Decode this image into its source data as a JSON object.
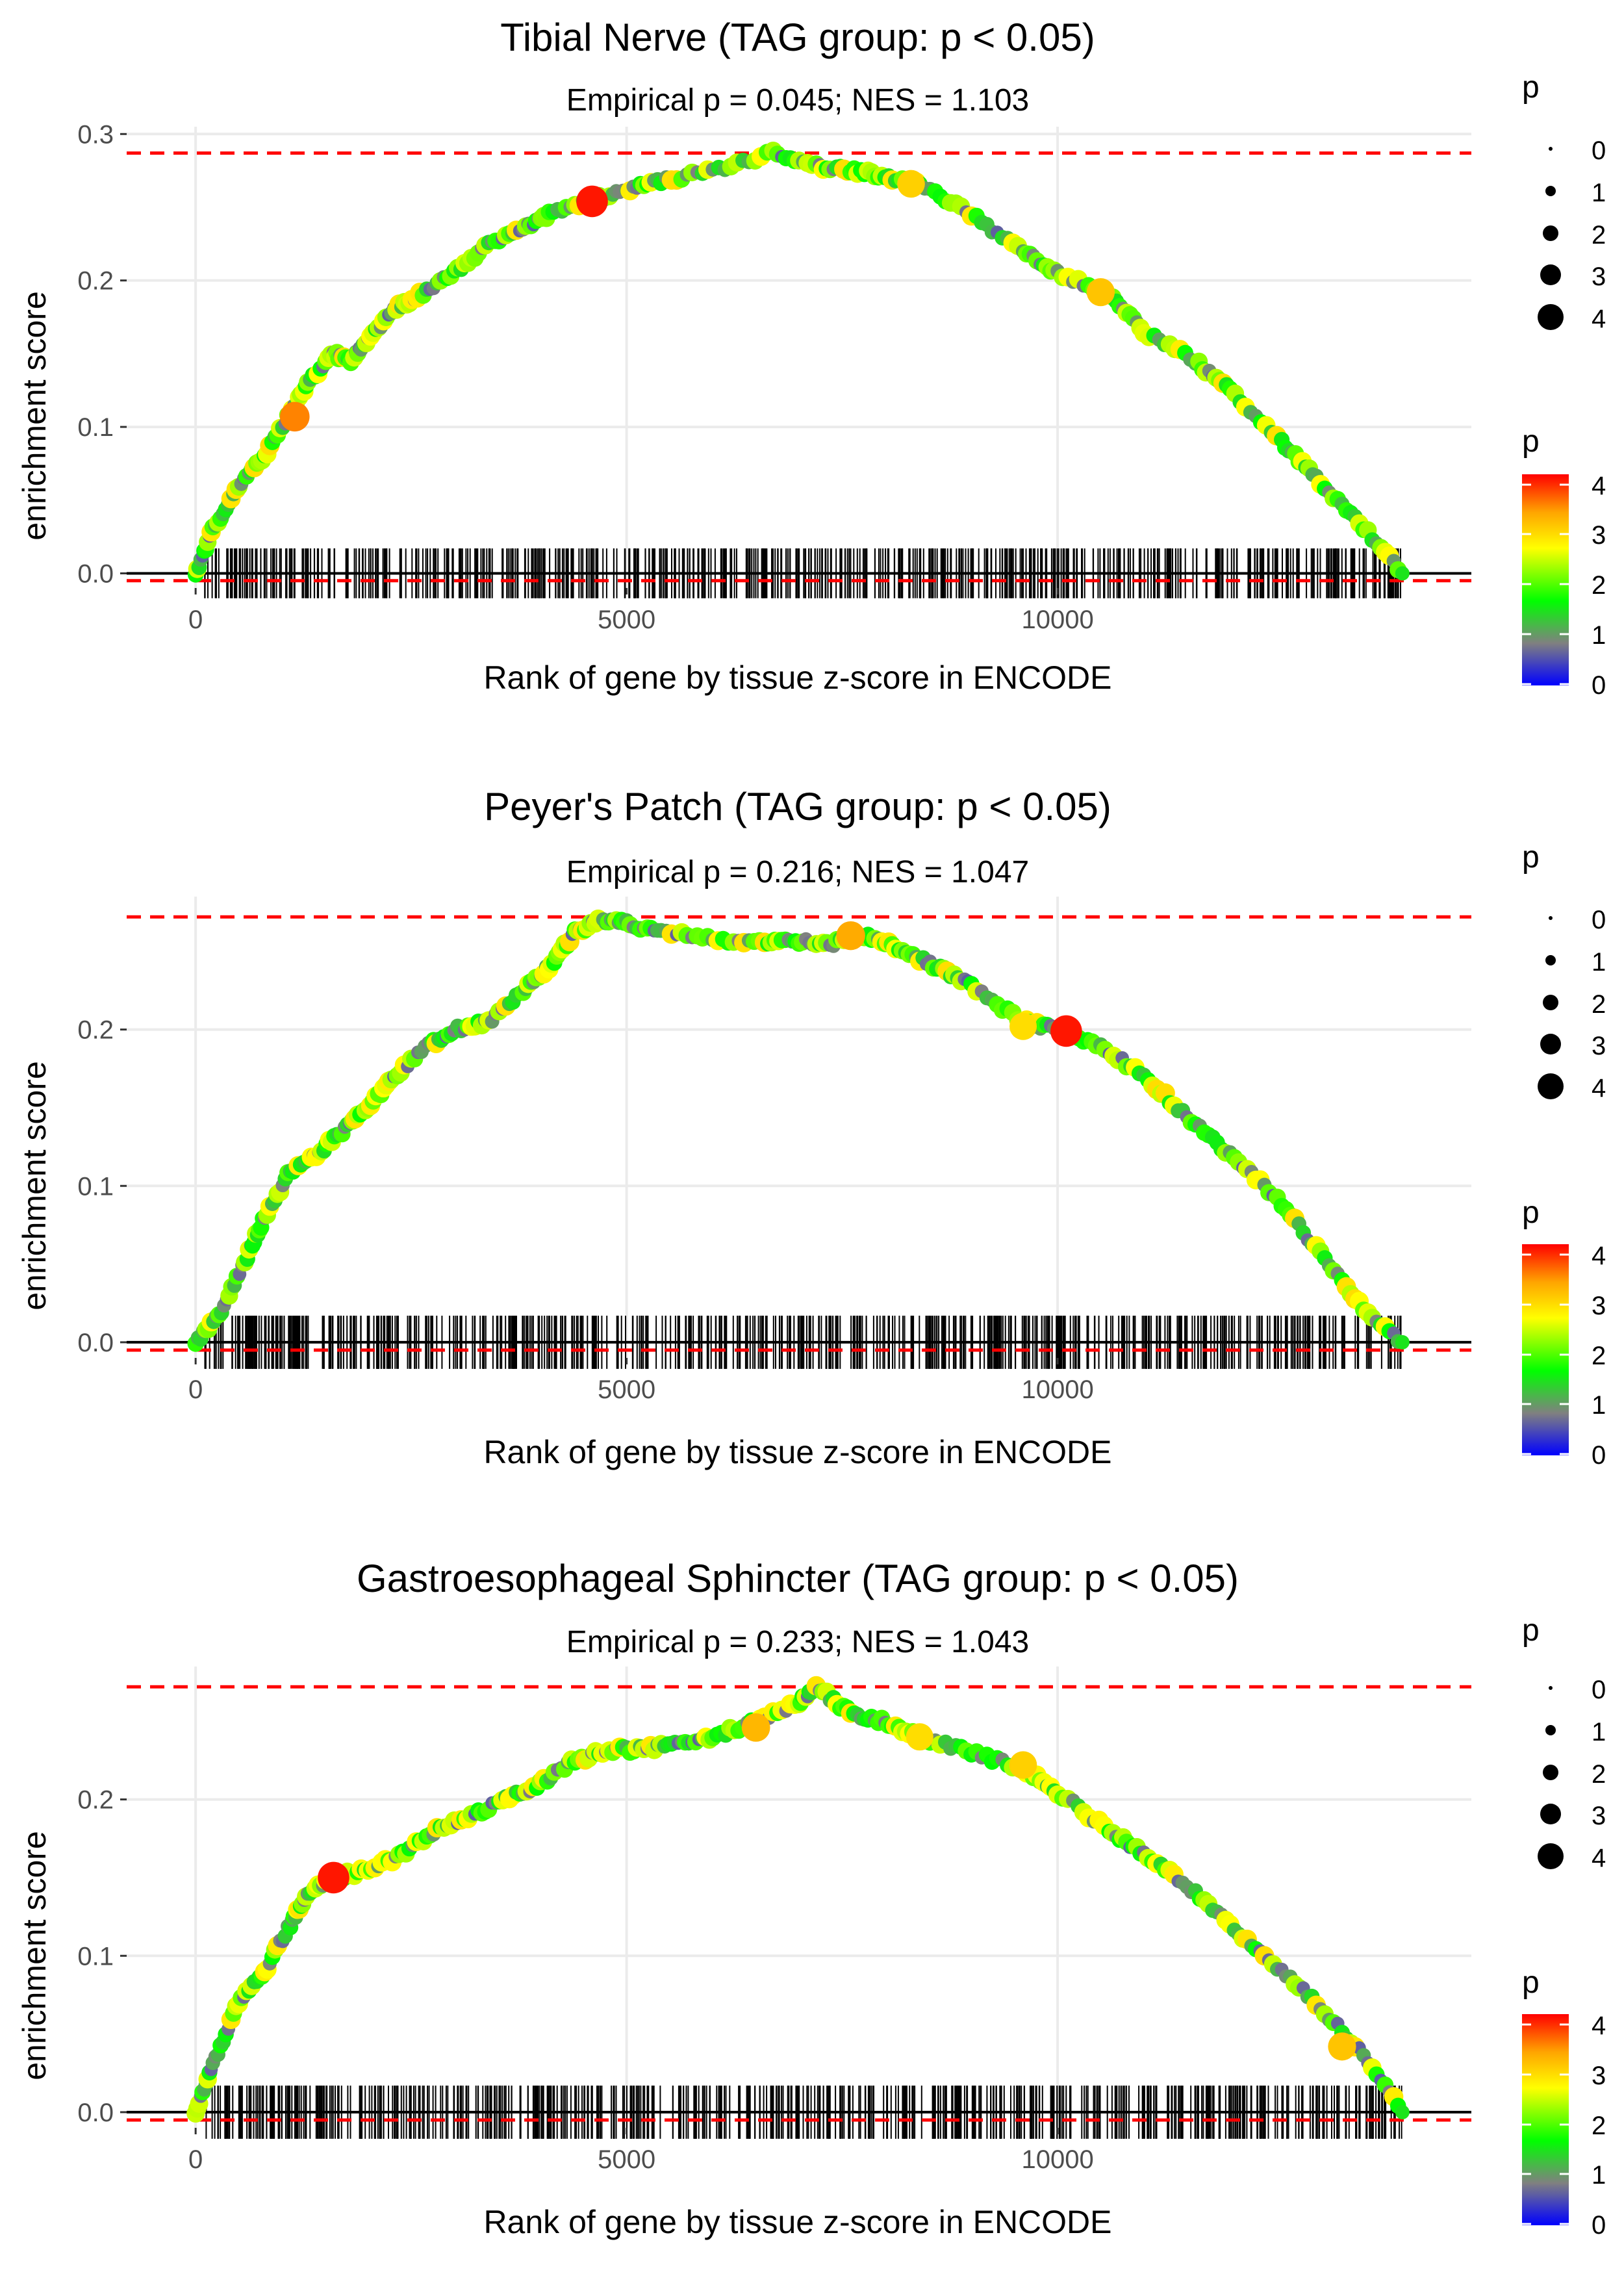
{
  "chart_data": [
    {
      "type": "line",
      "title": "Tibial Nerve (TAG group: p < 0.05)",
      "subtitle": "Empirical p = 0.045; NES = 1.103",
      "xlabel": "Rank of gene by tissue z-score in ENCODE",
      "ylabel": "enrichment score",
      "xlim": [
        -800,
        14800
      ],
      "ylim": [
        -0.01,
        0.305
      ],
      "x_ticks": [
        0,
        5000,
        10000
      ],
      "x_tick_labels": [
        "0",
        "5000",
        "10000"
      ],
      "y_ticks": [
        0.0,
        0.1,
        0.2,
        0.3
      ],
      "y_tick_labels": [
        "0.0",
        "0.1",
        "0.2",
        "0.3"
      ],
      "max_es": 0.287,
      "min_es": -0.005,
      "rug_seed": 11,
      "x": [
        0,
        200,
        500,
        800,
        1100,
        1300,
        1600,
        1800,
        2000,
        2300,
        2600,
        3000,
        3400,
        3800,
        4100,
        4600,
        5000,
        5400,
        6000,
        6700,
        7200,
        7600,
        8000,
        8400,
        9000,
        9600,
        10000,
        10600,
        11000,
        11600,
        12000,
        12600,
        13000,
        13500,
        14000
      ],
      "y": [
        0.0,
        0.03,
        0.06,
        0.08,
        0.11,
        0.13,
        0.15,
        0.145,
        0.16,
        0.18,
        0.19,
        0.205,
        0.225,
        0.235,
        0.245,
        0.255,
        0.262,
        0.268,
        0.275,
        0.287,
        0.278,
        0.276,
        0.27,
        0.265,
        0.245,
        0.22,
        0.205,
        0.19,
        0.165,
        0.145,
        0.125,
        0.09,
        0.065,
        0.035,
        0.0
      ],
      "highlight_points": [
        {
          "x": 1150,
          "y": 0.107,
          "p": 3.6
        },
        {
          "x": 4600,
          "y": 0.254,
          "p": 4.1
        },
        {
          "x": 8300,
          "y": 0.266,
          "p": 3.1
        },
        {
          "x": 10500,
          "y": 0.192,
          "p": 3.2
        }
      ]
    },
    {
      "type": "line",
      "title": "Peyer's Patch (TAG group: p < 0.05)",
      "subtitle": "Empirical p = 0.216; NES = 1.047",
      "xlabel": "Rank of gene by tissue z-score in ENCODE",
      "ylabel": "enrichment score",
      "xlim": [
        -800,
        14800
      ],
      "ylim": [
        -0.01,
        0.285
      ],
      "x_ticks": [
        0,
        5000,
        10000
      ],
      "x_tick_labels": [
        "0",
        "5000",
        "10000"
      ],
      "y_ticks": [
        0.0,
        0.1,
        0.2
      ],
      "y_tick_labels": [
        "0.0",
        "0.1",
        "0.2"
      ],
      "max_es": 0.272,
      "min_es": -0.005,
      "rug_seed": 23,
      "x": [
        0,
        300,
        600,
        800,
        1100,
        1400,
        1700,
        2000,
        2300,
        2700,
        3000,
        3400,
        3800,
        4100,
        4400,
        4700,
        5000,
        5400,
        6000,
        6600,
        7000,
        7400,
        7800,
        8200,
        8600,
        9000,
        9600,
        10000,
        10500,
        11000,
        11500,
        12000,
        12500,
        13000,
        13500,
        14000
      ],
      "y": [
        0.0,
        0.02,
        0.055,
        0.08,
        0.11,
        0.12,
        0.135,
        0.15,
        0.17,
        0.19,
        0.2,
        0.205,
        0.225,
        0.24,
        0.262,
        0.27,
        0.268,
        0.262,
        0.258,
        0.255,
        0.256,
        0.255,
        0.26,
        0.25,
        0.24,
        0.228,
        0.205,
        0.2,
        0.19,
        0.17,
        0.145,
        0.12,
        0.095,
        0.06,
        0.025,
        0.0
      ],
      "highlight_points": [
        {
          "x": 7600,
          "y": 0.26,
          "p": 3.4
        },
        {
          "x": 10100,
          "y": 0.199,
          "p": 4.1
        },
        {
          "x": 9600,
          "y": 0.202,
          "p": 3.0
        }
      ]
    },
    {
      "type": "line",
      "title": "Gastroesophageal Sphincter (TAG group: p < 0.05)",
      "subtitle": "Empirical p = 0.233; NES = 1.043",
      "xlabel": "Rank of gene by tissue z-score in ENCODE",
      "ylabel": "enrichment score",
      "xlim": [
        -800,
        14800
      ],
      "ylim": [
        -0.01,
        0.285
      ],
      "x_ticks": [
        0,
        5000,
        10000
      ],
      "x_tick_labels": [
        "0",
        "5000",
        "10000"
      ],
      "y_ticks": [
        0.0,
        0.1,
        0.2
      ],
      "y_tick_labels": [
        "0.0",
        "0.1",
        "0.2"
      ],
      "max_es": 0.272,
      "min_es": -0.005,
      "rug_seed": 37,
      "x": [
        0,
        200,
        500,
        800,
        1100,
        1300,
        1600,
        2000,
        2400,
        2800,
        3200,
        3600,
        4000,
        4400,
        4800,
        5200,
        5600,
        6000,
        6500,
        7000,
        7200,
        7600,
        8000,
        8400,
        9000,
        9600,
        10000,
        10600,
        11000,
        11500,
        12000,
        12500,
        13000,
        13500,
        14000
      ],
      "y": [
        0.0,
        0.03,
        0.07,
        0.09,
        0.12,
        0.14,
        0.15,
        0.155,
        0.165,
        0.18,
        0.19,
        0.2,
        0.21,
        0.225,
        0.232,
        0.232,
        0.235,
        0.24,
        0.25,
        0.262,
        0.272,
        0.255,
        0.25,
        0.24,
        0.23,
        0.22,
        0.205,
        0.18,
        0.165,
        0.145,
        0.12,
        0.095,
        0.07,
        0.04,
        0.0
      ],
      "highlight_points": [
        {
          "x": 1600,
          "y": 0.15,
          "p": 4.1
        },
        {
          "x": 6500,
          "y": 0.246,
          "p": 3.3
        },
        {
          "x": 8400,
          "y": 0.24,
          "p": 3.0
        },
        {
          "x": 9600,
          "y": 0.222,
          "p": 3.1
        },
        {
          "x": 13300,
          "y": 0.042,
          "p": 3.2
        }
      ]
    }
  ],
  "legends": {
    "size": {
      "title": "p",
      "labels": [
        "0",
        "1",
        "2",
        "3",
        "4"
      ],
      "values": [
        0,
        1,
        2,
        3,
        4
      ]
    },
    "color": {
      "title": "p",
      "labels": [
        "4",
        "3",
        "2",
        "1",
        "0"
      ],
      "values": [
        4,
        3,
        2,
        1,
        0
      ],
      "min": 0,
      "max": 4.2
    },
    "color_stops": [
      "#0000FF",
      "#808080",
      "#00FF00",
      "#FFFF00",
      "#FFA500",
      "#FF0000"
    ]
  },
  "colors": {
    "dashed_line": "#FF0000",
    "zero_line": "#000000",
    "grid": "#EBEBEB",
    "rug": "#000000"
  }
}
